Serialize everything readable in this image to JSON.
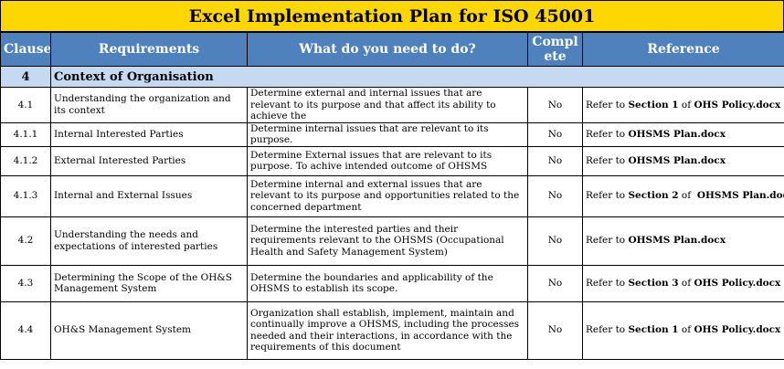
{
  "title": "Excel Implementation Plan for ISO 45001",
  "headers": {
    "clause": "Clause",
    "requirements": "Requirements",
    "what": "What do you need to do?",
    "complete_line1": "Compl",
    "complete_line2": "ete",
    "reference": "Reference"
  },
  "section": {
    "clause": "4",
    "title": "Context of Organisation"
  },
  "rows": [
    {
      "clause": "4.1",
      "requirement": "Understanding the organization and its context",
      "what": "Determine external and internal issues that are relevant to its purpose and that affect its ability to achieve the",
      "complete": "No",
      "ref_prefix": "Refer to ",
      "ref_section": "Section 1",
      "ref_of": " of ",
      "ref_doc": "OHS Policy.docx"
    },
    {
      "clause": "4.1.1",
      "requirement": "Internal Interested Parties",
      "what": "Determine internal issues that are relevant to its purpose.",
      "complete": "No",
      "ref_prefix": "Refer to ",
      "ref_section": "",
      "ref_of": "",
      "ref_doc": "OHSMS Plan.docx"
    },
    {
      "clause": "4.1.2",
      "requirement": "External Interested Parties",
      "what": "Determine External  issues that are relevant to its purpose. To achive intended outcome of OHSMS",
      "complete": "No",
      "ref_prefix": "Refer to ",
      "ref_section": "",
      "ref_of": "",
      "ref_doc": "OHSMS Plan.docx"
    },
    {
      "clause": "4.1.3",
      "requirement": "Internal and External Issues",
      "what": "Determine internal and external issues that are relevant to its purpose and opportunities related to the concerned department",
      "complete": "No",
      "ref_prefix": "Refer to ",
      "ref_section": "Section 2",
      "ref_of": " of  ",
      "ref_doc": "OHSMS Plan.docx"
    },
    {
      "clause": "4.2",
      "requirement": "Understanding the needs and expectations of interested parties",
      "what": "Determine the interested parties and their requirements relevant to the OHSMS (Occupational Health and Safety Management System)",
      "complete": "No",
      "ref_prefix": "Refer to ",
      "ref_section": "",
      "ref_of": "",
      "ref_doc": "OHSMS Plan.docx"
    },
    {
      "clause": "4.3",
      "requirement": "Determining the Scope of the OH&S Management System",
      "what": "Determine the boundaries and applicability of the OHSMS to establish its scope.",
      "complete": "No",
      "ref_prefix": "Refer to ",
      "ref_section": "Section 3",
      "ref_of": " of ",
      "ref_doc": "OHS Policy.docx"
    },
    {
      "clause": "4.4",
      "requirement": "OH&S Management System",
      "what": "Organization shall establish, implement, maintain and continually improve a OHSMS, including the processes needed and their interactions, in accordance with the requirements of this document",
      "complete": "No",
      "ref_prefix": "Refer to ",
      "ref_section": "Section 1",
      "ref_of": " of ",
      "ref_doc": "OHS Policy.docx"
    }
  ]
}
